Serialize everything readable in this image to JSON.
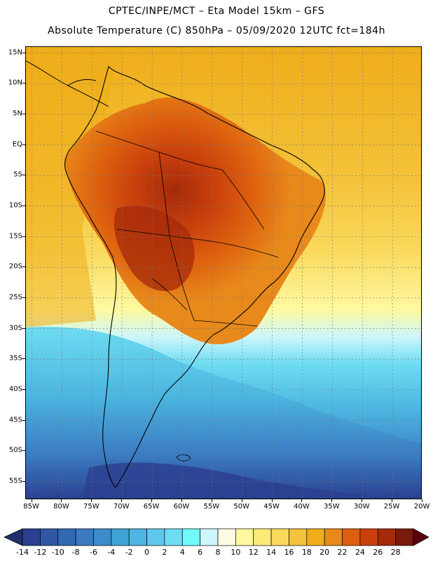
{
  "header": {
    "line1": "CPTEC/INPE/MCT –  Eta Model 15km – GFS",
    "line2": "Absolute Temperature (C) 850hPa – 05/09/2020 12UTC fct=184h"
  },
  "map": {
    "region": "South America",
    "variable": "Absolute Temperature (C)",
    "level": "850hPa",
    "model": "Eta Model 15km",
    "driver": "GFS",
    "lat_labels": [
      "15N",
      "10N",
      "5N",
      "EQ",
      "5S",
      "10S",
      "15S",
      "20S",
      "25S",
      "30S",
      "35S",
      "40S",
      "45S",
      "50S",
      "55S"
    ],
    "lon_labels": [
      "85W",
      "80W",
      "75W",
      "70W",
      "65W",
      "60W",
      "55W",
      "50W",
      "45W",
      "40W",
      "35W",
      "30W",
      "25W",
      "20W"
    ],
    "lat_range": [
      16,
      -58
    ],
    "lon_range": [
      -86,
      -20
    ]
  },
  "colorbar": {
    "labels": [
      "-14",
      "-12",
      "-10",
      "-8",
      "-6",
      "-4",
      "-2",
      "0",
      "2",
      "4",
      "6",
      "8",
      "10",
      "12",
      "14",
      "16",
      "18",
      "20",
      "22",
      "24",
      "26",
      "28"
    ],
    "colors": [
      "#2a3f8f",
      "#2f57a3",
      "#3267b2",
      "#3b79c1",
      "#3c8ccb",
      "#3fa1d4",
      "#4cb6e0",
      "#5cc9ea",
      "#6edcf2",
      "#6ffafd",
      "#cdf6fb",
      "#fffbe2",
      "#fff9a0",
      "#fde97a",
      "#f9d95c",
      "#f4c33a",
      "#efad1a",
      "#e8891b",
      "#dd5f0e",
      "#c9400c",
      "#a52a0a",
      "#7a1a0a"
    ],
    "under_color": "#1f2f6b",
    "over_color": "#5a0010"
  }
}
